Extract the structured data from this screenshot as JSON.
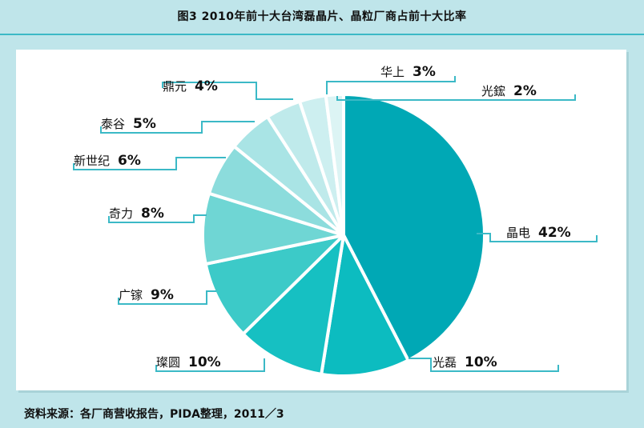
{
  "title": "图3  2010年前十大台湾磊晶片、晶粒厂商占前十大比率",
  "source": "资料来源：各厂商营收报告，PIDA整理，2011／3",
  "chart_data": {
    "type": "pie",
    "title": "图3  2010年前十大台湾磊晶片、晶粒厂商占前十大比率",
    "slices": [
      {
        "name": "晶电",
        "value": 42,
        "label": "42%",
        "color": "#00a8b5"
      },
      {
        "name": "光磊",
        "value": 10,
        "label": "10%",
        "color": "#0cbcc0"
      },
      {
        "name": "璨圆",
        "value": 10,
        "label": "10%",
        "color": "#16c0c2"
      },
      {
        "name": "广镓",
        "value": 9,
        "label": "9%",
        "color": "#3ccac8"
      },
      {
        "name": "奇力",
        "value": 8,
        "label": "8%",
        "color": "#6fd6d4"
      },
      {
        "name": "新世纪",
        "value": 6,
        "label": "6%",
        "color": "#8cdcdc"
      },
      {
        "name": "泰谷",
        "value": 5,
        "label": "5%",
        "color": "#a9e4e5"
      },
      {
        "name": "鼎元",
        "value": 4,
        "label": "4%",
        "color": "#bfeaeb"
      },
      {
        "name": "华上",
        "value": 3,
        "label": "3%",
        "color": "#cdeff0"
      },
      {
        "name": "光鋐",
        "value": 2,
        "label": "2%",
        "color": "#dcf4f4"
      }
    ]
  }
}
